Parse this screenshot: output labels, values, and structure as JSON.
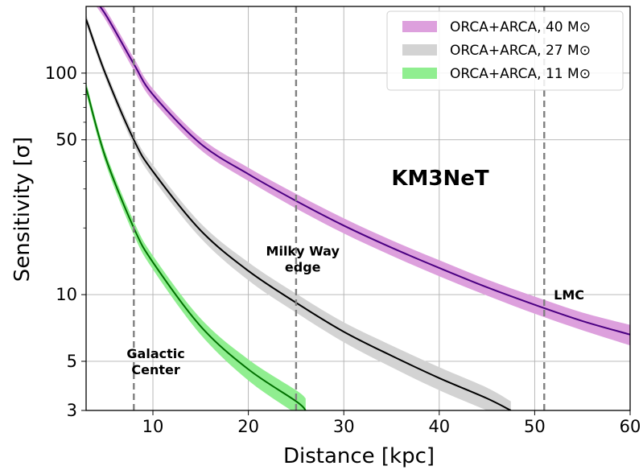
{
  "chart_data": {
    "type": "line",
    "title": "",
    "xlabel": "Distance [kpc]",
    "ylabel": "Sensitivity [σ]",
    "xlim": [
      3,
      60
    ],
    "ylim": [
      3,
      200
    ],
    "yscale": "log",
    "grid": true,
    "legend_placement": "top-right",
    "x_ticks": [
      10,
      20,
      30,
      40,
      50,
      60
    ],
    "x_tick_labels": [
      "10",
      "20",
      "30",
      "40",
      "50",
      "60"
    ],
    "y_ticks": [
      5,
      10,
      50,
      100
    ],
    "y_tick_labels": [
      "5",
      "10",
      "50",
      "100"
    ],
    "y_extra_ticks": [
      3
    ],
    "y_extra_tick_labels": [
      "3"
    ],
    "brand_text": "KM3NeT",
    "series": [
      {
        "name": "ORCA+ARCA, 40 M⊙",
        "line_color": "#4b0082",
        "band_color": "#dda0dd",
        "x": [
          3,
          5,
          8,
          10,
          15,
          20,
          25,
          30,
          35,
          40,
          45,
          50,
          55,
          60
        ],
        "y": [
          240,
          185,
          110,
          80,
          48,
          35,
          26.5,
          20.5,
          16.3,
          13.2,
          10.8,
          9.0,
          7.6,
          6.6
        ],
        "band_lower": [
          228,
          175,
          103,
          75,
          45,
          32.6,
          24.5,
          18.9,
          15.0,
          12.1,
          9.9,
          8.2,
          6.9,
          5.9
        ],
        "band_upper": [
          252,
          195,
          117,
          85,
          51,
          37.4,
          28.5,
          22.1,
          17.6,
          14.3,
          11.7,
          9.8,
          8.3,
          7.3
        ]
      },
      {
        "name": "ORCA+ARCA, 27 M⊙",
        "line_color": "#000000",
        "band_color": "#d3d3d3",
        "x": [
          3,
          5,
          8,
          10,
          15,
          20,
          25,
          30,
          35,
          40,
          45,
          47.5
        ],
        "y": [
          175,
          100,
          50,
          36,
          19.5,
          12.8,
          9.2,
          6.8,
          5.3,
          4.2,
          3.4,
          3.0
        ],
        "band_lower": [
          166,
          95,
          47,
          33.5,
          18.0,
          11.6,
          8.3,
          6.1,
          4.7,
          3.7,
          3.0,
          2.7
        ],
        "band_upper": [
          184,
          105,
          53,
          38.5,
          21.0,
          14.0,
          10.1,
          7.5,
          5.9,
          4.7,
          3.8,
          3.3
        ]
      },
      {
        "name": "ORCA+ARCA, 11 M⊙",
        "line_color": "#007000",
        "band_color": "#90ee90",
        "x": [
          3,
          5,
          8,
          10,
          15,
          20,
          25,
          26
        ],
        "y": [
          86,
          42,
          20,
          14,
          7.2,
          4.6,
          3.3,
          3.0
        ],
        "band_lower": [
          81,
          39.5,
          18.6,
          13.0,
          6.6,
          4.1,
          2.9,
          2.7
        ],
        "band_upper": [
          91,
          44.5,
          21.4,
          15.0,
          7.8,
          5.1,
          3.7,
          3.4
        ]
      }
    ],
    "vlines": [
      {
        "x": 8,
        "label": "Galactic Center",
        "label_lines": [
          "Galactic",
          "Center"
        ],
        "label_x": 10.3,
        "label_y": 5.0
      },
      {
        "x": 25,
        "label": "Milky Way edge",
        "label_lines": [
          "Milky Way",
          "edge"
        ],
        "label_x": 25.7,
        "label_y": 14.5
      },
      {
        "x": 51,
        "label": "LMC",
        "label_lines": [
          "LMC"
        ],
        "label_x": 53.6,
        "label_y": 10.0
      }
    ]
  }
}
